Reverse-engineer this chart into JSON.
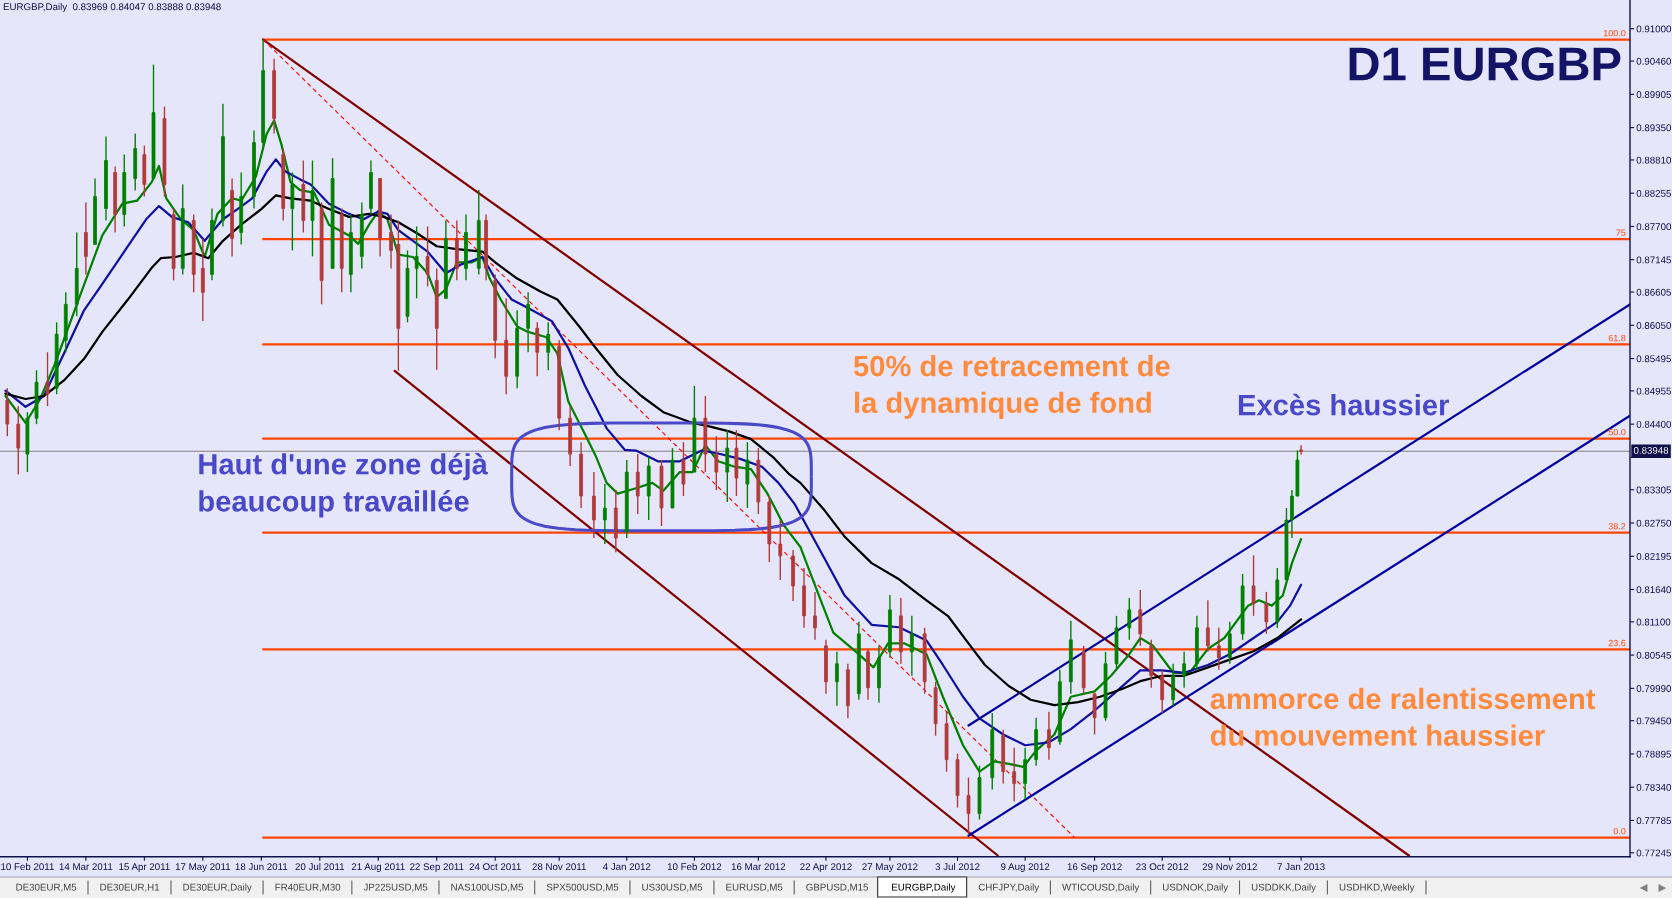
{
  "chart_data": {
    "type": "candlestick",
    "title": "D1 EURGBP",
    "annotations": [
      "EURGBP,Daily  0.83969 0.84047 0.83888 0.83948",
      {
        "text": "Haut d'une zone déjà\nbeaucoup travaillée",
        "x": "2011-05-14",
        "y": 0.8392
      },
      "50% de retracement de\nla dynamique de fond",
      "Excès haussier",
      {
        "text": "ammorce de ralentissement\ndu mouvement haussier",
        "x": "2012-11-18",
        "y": 0.8
      },
      "DE30EUR,M5",
      "DE30EUR,H1",
      "DE30EUR,Daily",
      "FR40EUR,M30",
      "JP225USD,M5",
      "NAS100USD,M5",
      "SPX500USD,M5",
      "US30USD,M5",
      "EURUSD,M5",
      "GBPUSD,M15",
      "EURGBP,Daily",
      "CHFJPY,Daily",
      "WTICOUSD,Daily",
      "USDNOK,Daily",
      "USDDKK,Daily",
      "USDHKD,Weekly"
    ],
    "x": [
      "2011-01-30",
      "2011-02-05",
      "2011-02-10",
      "2011-02-15",
      "2011-02-21",
      "2011-02-26",
      "2011-03-03",
      "2011-03-09",
      "2011-03-14",
      "2011-03-19",
      "2011-03-25",
      "2011-03-30",
      "2011-04-04",
      "2011-04-10",
      "2011-04-15",
      "2011-04-20",
      "2011-04-26",
      "2011-05-01",
      "2011-05-06",
      "2011-05-12",
      "2011-05-17",
      "2011-05-22",
      "2011-05-28",
      "2011-06-02",
      "2011-06-07",
      "2011-06-14",
      "2011-06-19",
      "2011-06-25",
      "2011-06-30",
      "2011-07-05",
      "2011-07-11",
      "2011-07-16",
      "2011-07-21",
      "2011-07-27",
      "2011-08-01",
      "2011-08-06",
      "2011-08-12",
      "2011-08-17",
      "2011-08-22",
      "2011-08-28",
      "2011-09-01",
      "2011-09-06",
      "2011-09-11",
      "2011-09-17",
      "2011-09-22",
      "2011-09-27",
      "2011-10-03",
      "2011-10-08",
      "2011-10-15",
      "2011-10-19",
      "2011-10-24",
      "2011-10-30",
      "2011-11-05",
      "2011-11-11",
      "2011-11-16",
      "2011-11-22",
      "2011-11-28",
      "2011-12-04",
      "2011-12-10",
      "2011-12-17",
      "2011-12-23",
      "2011-12-29",
      "2012-01-04",
      "2012-01-10",
      "2012-01-16",
      "2012-01-23",
      "2012-01-29",
      "2012-02-04",
      "2012-02-10",
      "2012-02-16",
      "2012-02-22",
      "2012-02-28",
      "2012-03-04",
      "2012-03-10",
      "2012-03-16",
      "2012-03-22",
      "2012-03-28",
      "2012-04-04",
      "2012-04-10",
      "2012-04-16",
      "2012-04-22",
      "2012-04-28",
      "2012-05-04",
      "2012-05-10",
      "2012-05-15",
      "2012-05-21",
      "2012-05-27",
      "2012-06-02",
      "2012-06-08",
      "2012-06-15",
      "2012-06-21",
      "2012-06-27",
      "2012-07-03",
      "2012-07-09",
      "2012-07-15",
      "2012-07-22",
      "2012-07-28",
      "2012-08-03",
      "2012-08-09",
      "2012-08-15",
      "2012-08-22",
      "2012-08-28",
      "2012-09-03",
      "2012-09-10",
      "2012-09-16",
      "2012-09-22",
      "2012-09-28",
      "2012-10-05",
      "2012-10-11",
      "2012-10-17",
      "2012-10-23",
      "2012-10-29",
      "2012-11-04",
      "2012-11-11",
      "2012-11-17",
      "2012-11-23",
      "2012-11-29",
      "2012-12-06",
      "2012-12-12",
      "2012-12-19",
      "2012-12-25",
      "2012-12-30",
      "2013-01-02",
      "2013-01-05",
      "2013-01-07"
    ],
    "ohlc": [
      [
        0.848,
        0.85,
        0.842,
        0.844
      ],
      [
        0.844,
        0.847,
        0.8356,
        0.84
      ],
      [
        0.839,
        0.846,
        0.836,
        0.845
      ],
      [
        0.845,
        0.853,
        0.844,
        0.851
      ],
      [
        0.851,
        0.856,
        0.847,
        0.849
      ],
      [
        0.85,
        0.861,
        0.849,
        0.859
      ],
      [
        0.858,
        0.866,
        0.856,
        0.864
      ],
      [
        0.864,
        0.876,
        0.862,
        0.87
      ],
      [
        0.876,
        0.881,
        0.869,
        0.872
      ],
      [
        0.874,
        0.885,
        0.874,
        0.882
      ],
      [
        0.88,
        0.892,
        0.878,
        0.888
      ],
      [
        0.886,
        0.887,
        0.876,
        0.879
      ],
      [
        0.879,
        0.889,
        0.877,
        0.886
      ],
      [
        0.885,
        0.8925,
        0.883,
        0.89
      ],
      [
        0.889,
        0.8905,
        0.882,
        0.884
      ],
      [
        0.885,
        0.904,
        0.885,
        0.896
      ],
      [
        0.895,
        0.897,
        0.882,
        0.884
      ],
      [
        0.879,
        0.88,
        0.868,
        0.87
      ],
      [
        0.87,
        0.884,
        0.869,
        0.88
      ],
      [
        0.878,
        0.879,
        0.866,
        0.869
      ],
      [
        0.87,
        0.875,
        0.8612,
        0.866
      ],
      [
        0.869,
        0.88,
        0.868,
        0.878
      ],
      [
        0.878,
        0.8975,
        0.877,
        0.892
      ],
      [
        0.883,
        0.885,
        0.872,
        0.875
      ],
      [
        0.876,
        0.886,
        0.874,
        0.882
      ],
      [
        0.882,
        0.893,
        0.88,
        0.891
      ],
      [
        0.891,
        0.9082,
        0.89,
        0.903
      ],
      [
        0.903,
        0.905,
        0.8925,
        0.895
      ],
      [
        0.889,
        0.89,
        0.878,
        0.88
      ],
      [
        0.88,
        0.886,
        0.873,
        0.884
      ],
      [
        0.884,
        0.888,
        0.876,
        0.878
      ],
      [
        0.878,
        0.888,
        0.872,
        0.883
      ],
      [
        0.88,
        0.881,
        0.864,
        0.868
      ],
      [
        0.87,
        0.8884,
        0.87,
        0.885
      ],
      [
        0.879,
        0.88,
        0.866,
        0.87
      ],
      [
        0.869,
        0.879,
        0.866,
        0.876
      ],
      [
        0.872,
        0.881,
        0.87,
        0.879
      ],
      [
        0.88,
        0.888,
        0.879,
        0.886
      ],
      [
        0.885,
        0.885,
        0.872,
        0.875
      ],
      [
        0.876,
        0.879,
        0.87,
        0.873
      ],
      [
        0.874,
        0.878,
        0.8529,
        0.86
      ],
      [
        0.862,
        0.873,
        0.861,
        0.87
      ],
      [
        0.87,
        0.877,
        0.865,
        0.872
      ],
      [
        0.872,
        0.877,
        0.867,
        0.869
      ],
      [
        0.868,
        0.87,
        0.8531,
        0.86
      ],
      [
        0.865,
        0.878,
        0.865,
        0.875
      ],
      [
        0.875,
        0.878,
        0.868,
        0.87
      ],
      [
        0.87,
        0.879,
        0.868,
        0.876
      ],
      [
        0.87,
        0.8831,
        0.869,
        0.878
      ],
      [
        0.878,
        0.879,
        0.868,
        0.87
      ],
      [
        0.868,
        0.869,
        0.855,
        0.858
      ],
      [
        0.858,
        0.865,
        0.849,
        0.852
      ],
      [
        0.852,
        0.863,
        0.85,
        0.86
      ],
      [
        0.86,
        0.866,
        0.856,
        0.864
      ],
      [
        0.86,
        0.861,
        0.852,
        0.856
      ],
      [
        0.856,
        0.861,
        0.853,
        0.859
      ],
      [
        0.857,
        0.858,
        0.843,
        0.845
      ],
      [
        0.845,
        0.847,
        0.837,
        0.839
      ],
      [
        0.839,
        0.841,
        0.83,
        0.832
      ],
      [
        0.832,
        0.836,
        0.825,
        0.828
      ],
      [
        0.828,
        0.834,
        0.824,
        0.83
      ],
      [
        0.83,
        0.833,
        0.8226,
        0.825
      ],
      [
        0.826,
        0.838,
        0.825,
        0.836
      ],
      [
        0.836,
        0.839,
        0.829,
        0.832
      ],
      [
        0.832,
        0.8385,
        0.828,
        0.837
      ],
      [
        0.837,
        0.838,
        0.827,
        0.83
      ],
      [
        0.83,
        0.84,
        0.83,
        0.838
      ],
      [
        0.838,
        0.841,
        0.832,
        0.834
      ],
      [
        0.836,
        0.8504,
        0.836,
        0.845
      ],
      [
        0.845,
        0.8487,
        0.836,
        0.839
      ],
      [
        0.839,
        0.842,
        0.833,
        0.836
      ],
      [
        0.836,
        0.843,
        0.831,
        0.84
      ],
      [
        0.84,
        0.843,
        0.832,
        0.835
      ],
      [
        0.834,
        0.841,
        0.83,
        0.838
      ],
      [
        0.838,
        0.84,
        0.829,
        0.831
      ],
      [
        0.831,
        0.832,
        0.821,
        0.824
      ],
      [
        0.824,
        0.828,
        0.818,
        0.822
      ],
      [
        0.822,
        0.823,
        0.8145,
        0.817
      ],
      [
        0.817,
        0.82,
        0.81,
        0.812
      ],
      [
        0.812,
        0.816,
        0.808,
        0.81
      ],
      [
        0.807,
        0.808,
        0.799,
        0.801
      ],
      [
        0.801,
        0.806,
        0.797,
        0.804
      ],
      [
        0.803,
        0.804,
        0.7949,
        0.797
      ],
      [
        0.799,
        0.811,
        0.798,
        0.809
      ],
      [
        0.806,
        0.8065,
        0.798,
        0.8
      ],
      [
        0.8,
        0.807,
        0.7975,
        0.805
      ],
      [
        0.806,
        0.8155,
        0.805,
        0.813
      ],
      [
        0.812,
        0.815,
        0.804,
        0.806
      ],
      [
        0.806,
        0.812,
        0.802,
        0.809
      ],
      [
        0.809,
        0.81,
        0.799,
        0.801
      ],
      [
        0.8,
        0.801,
        0.792,
        0.794
      ],
      [
        0.794,
        0.796,
        0.786,
        0.788
      ],
      [
        0.788,
        0.789,
        0.78,
        0.782
      ],
      [
        0.782,
        0.785,
        0.7755,
        0.779
      ],
      [
        0.779,
        0.787,
        0.778,
        0.785
      ],
      [
        0.785,
        0.7958,
        0.783,
        0.793
      ],
      [
        0.792,
        0.793,
        0.784,
        0.786
      ],
      [
        0.786,
        0.79,
        0.781,
        0.784
      ],
      [
        0.784,
        0.79,
        0.7814,
        0.788
      ],
      [
        0.788,
        0.795,
        0.787,
        0.793
      ],
      [
        0.793,
        0.796,
        0.788,
        0.79
      ],
      [
        0.791,
        0.803,
        0.7905,
        0.801
      ],
      [
        0.801,
        0.8112,
        0.799,
        0.808
      ],
      [
        0.806,
        0.807,
        0.799,
        0.8
      ],
      [
        0.799,
        0.799,
        0.7922,
        0.795
      ],
      [
        0.795,
        0.806,
        0.7945,
        0.804
      ],
      [
        0.804,
        0.812,
        0.803,
        0.81
      ],
      [
        0.81,
        0.815,
        0.808,
        0.813
      ],
      [
        0.813,
        0.8163,
        0.807,
        0.809
      ],
      [
        0.807,
        0.808,
        0.8,
        0.802
      ],
      [
        0.802,
        0.803,
        0.7958,
        0.798
      ],
      [
        0.798,
        0.804,
        0.797,
        0.802
      ],
      [
        0.802,
        0.806,
        0.8,
        0.804
      ],
      [
        0.804,
        0.812,
        0.803,
        0.81
      ],
      [
        0.81,
        0.8146,
        0.806,
        0.807
      ],
      [
        0.807,
        0.81,
        0.803,
        0.805
      ],
      [
        0.805,
        0.811,
        0.804,
        0.809
      ],
      [
        0.809,
        0.819,
        0.808,
        0.817
      ],
      [
        0.817,
        0.8221,
        0.812,
        0.814
      ],
      [
        0.814,
        0.816,
        0.809,
        0.811
      ],
      [
        0.811,
        0.82,
        0.81,
        0.818
      ],
      [
        0.818,
        0.83,
        0.818,
        0.828
      ],
      [
        0.828,
        0.833,
        0.825,
        0.832
      ],
      [
        0.832,
        0.8396,
        0.832,
        0.838
      ],
      [
        0.83969,
        0.84047,
        0.83888,
        0.83948
      ]
    ],
    "colors": [
      "#b03a3a",
      "#b03a3a",
      "#008000",
      "#008000",
      "#b03a3a",
      "#008000",
      "#008000",
      "#008000",
      "#b03a3a",
      "#008000",
      "#008000",
      "#b03a3a",
      "#008000",
      "#008000",
      "#b03a3a",
      "#008000",
      "#b03a3a",
      "#b03a3a",
      "#008000",
      "#b03a3a",
      "#b03a3a",
      "#008000",
      "#008000",
      "#b03a3a",
      "#008000",
      "#008000",
      "#008000",
      "#b03a3a",
      "#b03a3a",
      "#008000",
      "#b03a3a",
      "#008000",
      "#b03a3a",
      "#008000",
      "#b03a3a",
      "#008000",
      "#008000",
      "#008000",
      "#b03a3a",
      "#b03a3a",
      "#b03a3a",
      "#008000",
      "#008000",
      "#b03a3a",
      "#b03a3a",
      "#008000",
      "#b03a3a",
      "#008000",
      "#008000",
      "#b03a3a",
      "#b03a3a",
      "#b03a3a",
      "#008000",
      "#008000",
      "#b03a3a",
      "#008000",
      "#b03a3a",
      "#b03a3a",
      "#b03a3a",
      "#b03a3a",
      "#008000",
      "#b03a3a",
      "#008000",
      "#b03a3a",
      "#008000",
      "#b03a3a",
      "#008000",
      "#b03a3a",
      "#008000",
      "#b03a3a",
      "#b03a3a",
      "#008000",
      "#b03a3a",
      "#008000",
      "#b03a3a",
      "#b03a3a",
      "#b03a3a",
      "#b03a3a",
      "#b03a3a",
      "#b03a3a",
      "#b03a3a",
      "#008000",
      "#b03a3a",
      "#008000",
      "#b03a3a",
      "#008000",
      "#008000",
      "#b03a3a",
      "#008000",
      "#b03a3a",
      "#b03a3a",
      "#b03a3a",
      "#b03a3a",
      "#b03a3a",
      "#008000",
      "#008000",
      "#b03a3a",
      "#b03a3a",
      "#008000",
      "#008000",
      "#b03a3a",
      "#008000",
      "#008000",
      "#b03a3a",
      "#b03a3a",
      "#008000",
      "#008000",
      "#008000",
      "#b03a3a",
      "#b03a3a",
      "#b03a3a",
      "#008000",
      "#008000",
      "#008000",
      "#b03a3a",
      "#b03a3a",
      "#008000",
      "#008000",
      "#b03a3a",
      "#b03a3a",
      "#008000",
      "#008000",
      "#008000",
      "#008000",
      "#b03a3a"
    ],
    "series": [
      {
        "type": "line",
        "name": "100.0",
        "color": "#ff4500",
        "x": [
          "2011-06-19",
          "2013-07-06"
        ],
        "values": [
          0.9082,
          0.9082
        ]
      },
      {
        "type": "line",
        "name": "75",
        "color": "#ff4500",
        "x": [
          "2011-06-19",
          "2013-07-06"
        ],
        "values": [
          0.8749,
          0.8749
        ]
      },
      {
        "type": "line",
        "name": "61.8",
        "color": "#ff4500",
        "x": [
          "2011-06-19",
          "2013-07-06"
        ],
        "values": [
          0.8573,
          0.8573
        ]
      },
      {
        "type": "line",
        "name": "50.0",
        "color": "#ff4500",
        "x": [
          "2011-06-19",
          "2013-07-06"
        ],
        "values": [
          0.8416,
          0.8416
        ]
      },
      {
        "type": "line",
        "name": "38.2",
        "color": "#ff4500",
        "x": [
          "2011-06-19",
          "2013-07-06"
        ],
        "values": [
          0.8259,
          0.8259
        ]
      },
      {
        "type": "line",
        "name": "23.6",
        "color": "#ff4500",
        "x": [
          "2011-06-19",
          "2013-07-06"
        ],
        "values": [
          0.8064,
          0.8064
        ]
      },
      {
        "type": "line",
        "name": "0.0",
        "color": "#ff4500",
        "x": [
          "2011-06-19",
          "2013-07-06"
        ],
        "values": [
          0.775,
          0.775
        ]
      },
      {
        "type": "line",
        "color": "#800000",
        "x": [
          "2011-06-19",
          "2013-03-07"
        ],
        "values": [
          0.9082,
          0.772
        ]
      },
      {
        "type": "line",
        "color": "#800000",
        "x": [
          "2011-08-30",
          "2012-07-25"
        ],
        "values": [
          0.8529,
          0.772
        ]
      },
      {
        "type": "line",
        "color": "#ff0000",
        "line_style": "dashed",
        "x": [
          "2011-06-19",
          "2012-09-05"
        ],
        "values": [
          0.9082,
          0.775
        ]
      },
      {
        "type": "line",
        "color": "#0000a0",
        "x": [
          "2012-07-09",
          "2013-07-06"
        ],
        "values": [
          0.7937,
          0.864
        ]
      },
      {
        "type": "line",
        "color": "#0000a0",
        "x": [
          "2012-07-09",
          "2013-07-06"
        ],
        "values": [
          0.7753,
          0.8454
        ]
      },
      {
        "type": "line",
        "color": "#008000",
        "x": [
          "2011-01-29",
          "2011-02-09",
          "2011-02-17",
          "2011-02-25",
          "2011-03-10",
          "2011-03-23",
          "2011-04-03",
          "2011-04-11",
          "2011-04-19",
          "2011-04-23",
          "2011-04-27",
          "2011-05-05",
          "2011-05-12",
          "2011-05-18",
          "2011-05-25",
          "2011-06-02",
          "2011-06-07",
          "2011-06-15",
          "2011-06-21",
          "2011-06-25",
          "2011-06-29",
          "2011-07-04",
          "2011-07-09",
          "2011-07-17",
          "2011-07-25",
          "2011-08-05",
          "2011-08-10",
          "2011-08-16",
          "2011-08-21",
          "2011-08-26",
          "2011-09-01",
          "2011-09-09",
          "2011-09-17",
          "2011-09-22",
          "2011-09-27",
          "2011-10-03",
          "2011-10-11",
          "2011-10-17",
          "2011-10-21",
          "2011-10-27",
          "2011-11-05",
          "2011-11-11",
          "2011-11-21",
          "2011-11-27",
          "2011-12-03",
          "2011-12-12",
          "2011-12-18",
          "2011-12-24",
          "2011-12-30",
          "2012-01-09",
          "2012-01-18",
          "2012-01-24",
          "2012-02-02",
          "2012-02-09",
          "2012-02-16",
          "2012-02-23",
          "2012-03-03",
          "2012-03-12",
          "2012-03-21",
          "2012-03-30",
          "2012-04-08",
          "2012-04-17",
          "2012-04-26",
          "2012-05-08",
          "2012-05-18",
          "2012-05-26",
          "2012-06-04",
          "2012-06-16",
          "2012-06-25",
          "2012-07-06",
          "2012-07-15",
          "2012-07-23",
          "2012-07-31",
          "2012-08-08",
          "2012-08-15",
          "2012-08-25",
          "2012-09-03",
          "2012-09-16",
          "2012-09-25",
          "2012-10-05",
          "2012-10-11",
          "2012-10-18",
          "2012-10-29",
          "2012-11-07",
          "2012-11-17",
          "2012-11-26",
          "2012-12-09",
          "2012-12-15",
          "2012-12-22",
          "2012-12-28",
          "2013-01-02",
          "2013-01-07"
        ],
        "values": [
          0.8487,
          0.8442,
          0.8482,
          0.854,
          0.8648,
          0.8755,
          0.8808,
          0.8813,
          0.8844,
          0.8871,
          0.8817,
          0.8782,
          0.8764,
          0.8719,
          0.8791,
          0.8817,
          0.8813,
          0.8853,
          0.8925,
          0.8947,
          0.8907,
          0.8844,
          0.8831,
          0.8826,
          0.8773,
          0.8755,
          0.8741,
          0.8773,
          0.8795,
          0.8782,
          0.8723,
          0.8719,
          0.8692,
          0.8652,
          0.8665,
          0.871,
          0.871,
          0.8719,
          0.8683,
          0.8648,
          0.8603,
          0.8594,
          0.8585,
          0.8558,
          0.8478,
          0.8424,
          0.8387,
          0.8342,
          0.8324,
          0.8333,
          0.8342,
          0.8329,
          0.836,
          0.836,
          0.8405,
          0.8378,
          0.8369,
          0.8365,
          0.8324,
          0.8271,
          0.8235,
          0.8163,
          0.8092,
          0.8061,
          0.8034,
          0.8074,
          0.8074,
          0.8056,
          0.7985,
          0.7904,
          0.786,
          0.7877,
          0.7873,
          0.7868,
          0.7895,
          0.7922,
          0.7985,
          0.7994,
          0.802,
          0.8056,
          0.8083,
          0.807,
          0.8025,
          0.8025,
          0.8065,
          0.8083,
          0.8137,
          0.8146,
          0.8137,
          0.8154,
          0.8208,
          0.8248
        ]
      },
      {
        "type": "line",
        "color": "#1010a0",
        "x": [
          "2011-01-29",
          "2011-02-09",
          "2011-02-19",
          "2011-03-02",
          "2011-03-13",
          "2011-03-23",
          "2011-04-06",
          "2011-04-16",
          "2011-04-23",
          "2011-04-30",
          "2011-05-09",
          "2011-05-18",
          "2011-05-28",
          "2011-06-05",
          "2011-06-13",
          "2011-06-21",
          "2011-06-26",
          "2011-07-01",
          "2011-07-09",
          "2011-07-15",
          "2011-07-25",
          "2011-08-05",
          "2011-08-13",
          "2011-08-21",
          "2011-08-26",
          "2011-09-01",
          "2011-09-09",
          "2011-09-17",
          "2011-09-27",
          "2011-10-05",
          "2011-10-17",
          "2011-10-24",
          "2011-11-02",
          "2011-11-11",
          "2011-11-24",
          "2011-12-03",
          "2011-12-12",
          "2011-12-24",
          "2012-01-03",
          "2012-01-09",
          "2012-01-21",
          "2012-02-02",
          "2012-02-14",
          "2012-02-23",
          "2012-03-06",
          "2012-03-18",
          "2012-03-27",
          "2012-04-05",
          "2012-04-21",
          "2012-05-02",
          "2012-05-17",
          "2012-06-01",
          "2012-06-16",
          "2012-06-25",
          "2012-07-06",
          "2012-07-15",
          "2012-07-28",
          "2012-08-09",
          "2012-08-22",
          "2012-09-03",
          "2012-09-16",
          "2012-09-28",
          "2012-10-11",
          "2012-10-23",
          "2012-11-04",
          "2012-11-17",
          "2012-11-29",
          "2012-12-12",
          "2012-12-25",
          "2013-01-01",
          "2013-01-07"
        ],
        "values": [
          0.8496,
          0.8469,
          0.8487,
          0.8558,
          0.863,
          0.8674,
          0.8737,
          0.8782,
          0.8804,
          0.8786,
          0.8777,
          0.8746,
          0.8782,
          0.8799,
          0.8817,
          0.8862,
          0.8882,
          0.8862,
          0.8849,
          0.884,
          0.8808,
          0.8791,
          0.8782,
          0.8795,
          0.8791,
          0.8764,
          0.8746,
          0.8728,
          0.8692,
          0.8706,
          0.8719,
          0.8683,
          0.8648,
          0.8634,
          0.8612,
          0.8567,
          0.8505,
          0.8433,
          0.8397,
          0.8396,
          0.8378,
          0.8378,
          0.8396,
          0.8391,
          0.8382,
          0.8369,
          0.8342,
          0.8306,
          0.8217,
          0.8155,
          0.8105,
          0.8101,
          0.8079,
          0.8038,
          0.7985,
          0.7949,
          0.7922,
          0.7904,
          0.7909,
          0.7931,
          0.7962,
          0.7994,
          0.8029,
          0.8029,
          0.8025,
          0.8038,
          0.8056,
          0.8083,
          0.811,
          0.8137,
          0.8172
        ]
      },
      {
        "type": "line",
        "color": "#000000",
        "x": [
          "2011-01-29",
          "2011-02-09",
          "2011-02-19",
          "2011-03-02",
          "2011-03-13",
          "2011-03-23",
          "2011-04-06",
          "2011-04-19",
          "2011-04-24",
          "2011-05-02",
          "2011-05-12",
          "2011-05-20",
          "2011-05-28",
          "2011-06-07",
          "2011-06-18",
          "2011-06-26",
          "2011-07-04",
          "2011-07-15",
          "2011-07-25",
          "2011-08-05",
          "2011-08-16",
          "2011-08-24",
          "2011-09-01",
          "2011-09-11",
          "2011-09-22",
          "2011-10-03",
          "2011-10-17",
          "2011-10-24",
          "2011-11-05",
          "2011-11-18",
          "2011-11-27",
          "2011-12-09",
          "2011-12-18",
          "2011-12-30",
          "2012-01-12",
          "2012-01-24",
          "2012-02-09",
          "2012-02-17",
          "2012-02-29",
          "2012-03-12",
          "2012-03-24",
          "2012-04-02",
          "2012-04-08",
          "2012-04-21",
          "2012-05-02",
          "2012-05-17",
          "2012-06-01",
          "2012-06-16",
          "2012-06-28",
          "2012-07-09",
          "2012-07-18",
          "2012-07-31",
          "2012-08-12",
          "2012-08-25",
          "2012-09-07",
          "2012-09-19",
          "2012-10-01",
          "2012-10-11",
          "2012-10-23",
          "2012-11-04",
          "2012-11-17",
          "2012-11-29",
          "2012-12-12",
          "2012-12-25",
          "2013-01-07"
        ],
        "values": [
          0.8491,
          0.8482,
          0.8487,
          0.8513,
          0.8549,
          0.8594,
          0.8648,
          0.8701,
          0.8717,
          0.8719,
          0.8726,
          0.8717,
          0.8746,
          0.8773,
          0.8799,
          0.8822,
          0.8817,
          0.8813,
          0.8799,
          0.8786,
          0.8791,
          0.8786,
          0.8777,
          0.8759,
          0.8737,
          0.8732,
          0.8728,
          0.871,
          0.8683,
          0.8661,
          0.8648,
          0.8603,
          0.8567,
          0.8522,
          0.8487,
          0.846,
          0.8442,
          0.8437,
          0.8428,
          0.8415,
          0.8385,
          0.8356,
          0.8342,
          0.8297,
          0.8253,
          0.8208,
          0.8181,
          0.8146,
          0.8119,
          0.8074,
          0.8038,
          0.8003,
          0.798,
          0.7971,
          0.7976,
          0.7985,
          0.7998,
          0.8011,
          0.802,
          0.802,
          0.8034,
          0.8047,
          0.8061,
          0.8083,
          0.8114
        ]
      }
    ],
    "ref_lines": [
      {
        "axis": "y",
        "value": 0.83948,
        "label": "0.83948",
        "color": "#808080"
      }
    ],
    "xlim": [
      "2011-01-26",
      "2013-07-06"
    ],
    "xticks": [
      {
        "value": "2011-02-10",
        "label": "10 Feb 2011"
      },
      {
        "value": "2011-03-14",
        "label": "14 Mar 2011"
      },
      {
        "value": "2011-04-15",
        "label": "15 Apr 2011"
      },
      {
        "value": "2011-05-17",
        "label": "17 May 2011"
      },
      {
        "value": "2011-06-18",
        "label": "18 Jun 2011"
      },
      {
        "value": "2011-07-20",
        "label": "20 Jul 2011"
      },
      {
        "value": "2011-08-21",
        "label": "21 Aug 2011"
      },
      {
        "value": "2011-09-22",
        "label": "22 Sep 2011"
      },
      {
        "value": "2011-10-24",
        "label": "24 Oct 2011"
      },
      {
        "value": "2011-11-28",
        "label": "28 Nov 2011"
      },
      {
        "value": "2012-01-04",
        "label": "4 Jan 2012"
      },
      {
        "value": "2012-02-10",
        "label": "10 Feb 2012"
      },
      {
        "value": "2012-03-16",
        "label": "16 Mar 2012"
      },
      {
        "value": "2012-04-22",
        "label": "22 Apr 2012"
      },
      {
        "value": "2012-05-27",
        "label": "27 May 2012"
      },
      {
        "value": "2012-07-03",
        "label": "3 Jul 2012"
      },
      {
        "value": "2012-08-09",
        "label": "9 Aug 2012"
      },
      {
        "value": "2012-09-16",
        "label": "16 Sep 2012"
      },
      {
        "value": "2012-10-23",
        "label": "23 Oct 2012"
      },
      {
        "value": "2012-11-29",
        "label": "29 Nov 2012"
      },
      {
        "value": "2013-01-07",
        "label": "7 Jan 2013"
      }
    ],
    "ylim": [
      0.7718,
      0.9148
    ],
    "yticks": [
      {
        "value": 0.91,
        "label": "0.91000"
      },
      {
        "value": 0.9046,
        "label": "0.90460"
      },
      {
        "value": 0.89905,
        "label": "0.89905"
      },
      {
        "value": 0.8935,
        "label": "0.89350"
      },
      {
        "value": 0.8881,
        "label": "0.88810"
      },
      {
        "value": 0.88255,
        "label": "0.88255"
      },
      {
        "value": 0.877,
        "label": "0.87700"
      },
      {
        "value": 0.87145,
        "label": "0.87145"
      },
      {
        "value": 0.86605,
        "label": "0.86605"
      },
      {
        "value": 0.8605,
        "label": "0.86050"
      },
      {
        "value": 0.85495,
        "label": "0.85495"
      },
      {
        "value": 0.84955,
        "label": "0.84955"
      },
      {
        "value": 0.844,
        "label": "0.84400"
      },
      {
        "value": 0.83845,
        "label": null
      },
      {
        "value": 0.83305,
        "label": "0.83305"
      },
      {
        "value": 0.8275,
        "label": "0.82750"
      },
      {
        "value": 0.82195,
        "label": "0.82195"
      },
      {
        "value": 0.8164,
        "label": "0.81640"
      },
      {
        "value": 0.811,
        "label": "0.81100"
      },
      {
        "value": 0.80545,
        "label": "0.80545"
      },
      {
        "value": 0.7999,
        "label": "0.79990"
      },
      {
        "value": 0.7945,
        "label": "0.79450"
      },
      {
        "value": 0.78895,
        "label": "0.78895"
      },
      {
        "value": 0.7834,
        "label": "0.78340"
      },
      {
        "value": 0.77785,
        "label": "0.77785"
      },
      {
        "value": 0.77245,
        "label": "0.77245"
      }
    ]
  }
}
